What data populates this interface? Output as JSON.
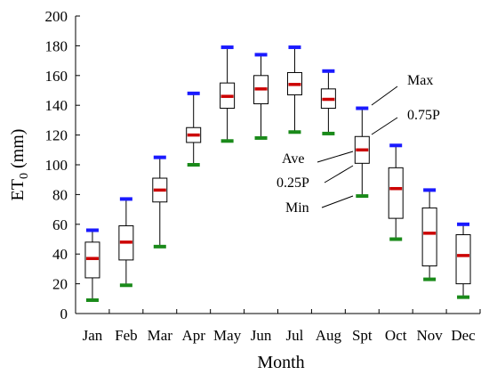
{
  "chart_data": {
    "type": "box",
    "title": "",
    "xlabel": "Month",
    "ylabel_main": "ET",
    "ylabel_sub": "0",
    "ylabel_unit": " (mm)",
    "ylim": [
      0,
      200
    ],
    "yticks": [
      0,
      20,
      40,
      60,
      80,
      100,
      120,
      140,
      160,
      180,
      200
    ],
    "categories": [
      "Jan",
      "Feb",
      "Mar",
      "Apr",
      "May",
      "Jun",
      "Jul",
      "Aug",
      "Spt",
      "Oct",
      "Nov",
      "Dec"
    ],
    "boxes": [
      {
        "min": 9,
        "q1": 24,
        "ave": 37,
        "q3": 48,
        "max": 56
      },
      {
        "min": 19,
        "q1": 36,
        "ave": 48,
        "q3": 59,
        "max": 77
      },
      {
        "min": 45,
        "q1": 75,
        "ave": 83,
        "q3": 91,
        "max": 105
      },
      {
        "min": 100,
        "q1": 115,
        "ave": 120,
        "q3": 125,
        "max": 148
      },
      {
        "min": 116,
        "q1": 138,
        "ave": 146,
        "q3": 155,
        "max": 179
      },
      {
        "min": 118,
        "q1": 141,
        "ave": 151,
        "q3": 160,
        "max": 174
      },
      {
        "min": 122,
        "q1": 147,
        "ave": 154,
        "q3": 162,
        "max": 179
      },
      {
        "min": 121,
        "q1": 138,
        "ave": 144,
        "q3": 151,
        "max": 163
      },
      {
        "min": 79,
        "q1": 101,
        "ave": 110,
        "q3": 119,
        "max": 138
      },
      {
        "min": 50,
        "q1": 64,
        "ave": 84,
        "q3": 98,
        "max": 113
      },
      {
        "min": 23,
        "q1": 32,
        "ave": 54,
        "q3": 71,
        "max": 83
      },
      {
        "min": 11,
        "q1": 20,
        "ave": 39,
        "q3": 53,
        "max": 60
      }
    ],
    "legend_labels": {
      "max": "Max",
      "q3": "0.75P",
      "ave": "Ave",
      "q1": "0.25P",
      "min": "Min"
    },
    "colors": {
      "max": "#1a1aff",
      "ave": "#cc0000",
      "min": "#1a8a1a",
      "box": "#000000"
    }
  }
}
